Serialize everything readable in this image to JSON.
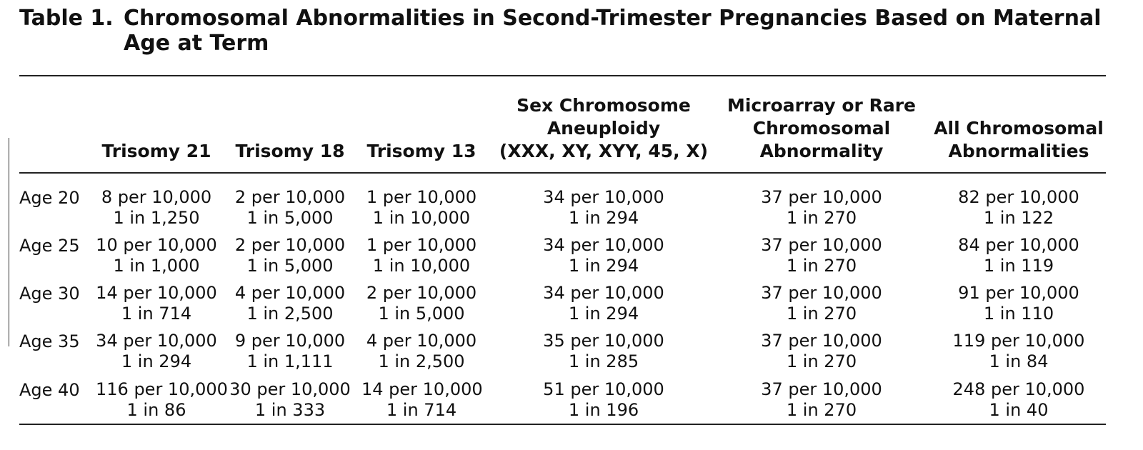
{
  "caption": {
    "label": "Table 1.",
    "title": "Chromosomal Abnormalities in Second-Trimester Pregnancies Based on Maternal Age at Term"
  },
  "columns": [
    {
      "label": "Trisomy 21"
    },
    {
      "label": "Trisomy 18"
    },
    {
      "label": "Trisomy 13"
    },
    {
      "label": "Sex Chromosome\nAneuploidy\n(XXX, XY, XYY, 45, X)"
    },
    {
      "label": "Microarray or Rare\nChromosomal\nAbnormality"
    },
    {
      "label": "All Chromosomal\nAbnormalities"
    }
  ],
  "rows": [
    {
      "label": "Age 20",
      "cells": [
        {
          "rate": "8 per 10,000",
          "ratio": "1 in 1,250"
        },
        {
          "rate": "2 per 10,000",
          "ratio": "1 in 5,000"
        },
        {
          "rate": "1 per 10,000",
          "ratio": "1 in 10,000"
        },
        {
          "rate": "34 per 10,000",
          "ratio": "1 in 294"
        },
        {
          "rate": "37 per 10,000",
          "ratio": "1 in 270"
        },
        {
          "rate": "82 per 10,000",
          "ratio": "1 in 122"
        }
      ]
    },
    {
      "label": "Age 25",
      "cells": [
        {
          "rate": "10 per 10,000",
          "ratio": "1 in 1,000"
        },
        {
          "rate": "2 per 10,000",
          "ratio": "1 in 5,000"
        },
        {
          "rate": "1 per 10,000",
          "ratio": "1 in 10,000"
        },
        {
          "rate": "34 per 10,000",
          "ratio": "1 in 294"
        },
        {
          "rate": "37 per 10,000",
          "ratio": "1 in 270"
        },
        {
          "rate": "84 per 10,000",
          "ratio": "1 in 119"
        }
      ]
    },
    {
      "label": "Age 30",
      "cells": [
        {
          "rate": "14 per 10,000",
          "ratio": "1 in 714"
        },
        {
          "rate": "4 per 10,000",
          "ratio": "1 in 2,500"
        },
        {
          "rate": "2 per 10,000",
          "ratio": "1 in 5,000"
        },
        {
          "rate": "34 per 10,000",
          "ratio": "1 in 294"
        },
        {
          "rate": "37 per 10,000",
          "ratio": "1 in 270"
        },
        {
          "rate": "91 per 10,000",
          "ratio": "1 in 110"
        }
      ]
    },
    {
      "label": "Age 35",
      "cells": [
        {
          "rate": "34 per 10,000",
          "ratio": "1 in 294"
        },
        {
          "rate": "9 per 10,000",
          "ratio": "1 in 1,111"
        },
        {
          "rate": "4 per 10,000",
          "ratio": "1 in 2,500"
        },
        {
          "rate": "35 per 10,000",
          "ratio": "1 in 285"
        },
        {
          "rate": "37 per 10,000",
          "ratio": "1 in 270"
        },
        {
          "rate": "119 per 10,000",
          "ratio": "1 in 84"
        }
      ]
    },
    {
      "label": "Age 40",
      "cells": [
        {
          "rate": "116 per 10,000",
          "ratio": "1 in 86"
        },
        {
          "rate": "30 per 10,000",
          "ratio": "1 in 333"
        },
        {
          "rate": "14 per 10,000",
          "ratio": "1 in 714"
        },
        {
          "rate": "51 per 10,000",
          "ratio": "1 in 196"
        },
        {
          "rate": "37 per 10,000",
          "ratio": "1 in 270"
        },
        {
          "rate": "248 per 10,000",
          "ratio": "1 in 40"
        }
      ]
    }
  ]
}
